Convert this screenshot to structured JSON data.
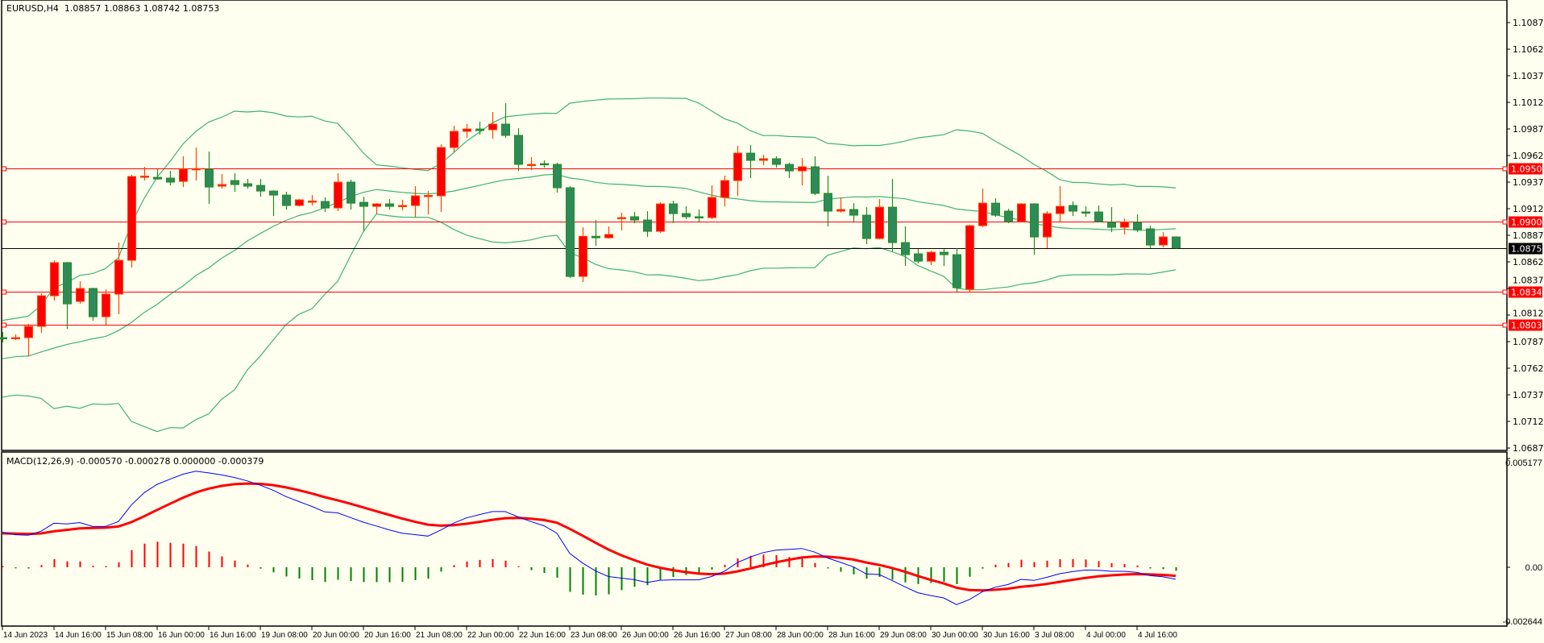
{
  "main_header": {
    "symbol": "EURUSD,H4",
    "ohlc": "1.08857 1.08863 1.08742 1.08753"
  },
  "macd_header": {
    "label": "MACD(12,26,9) -0.000570 -0.000278 0.000000 -0.000379"
  },
  "colors": {
    "background": "#fffff0",
    "bull_body": "#ff0000",
    "bull_edge": "#ff4500",
    "bear_body": "#2e8b57",
    "bear_edge": "#228b22",
    "bands": "#3cb371",
    "level": "#ff0000",
    "macd_main": "#0000ff",
    "macd_signal": "#ff0000",
    "hist_pos": "#ff0000",
    "hist_neg": "#008000"
  },
  "chart_data": [
    {
      "type": "candlestick",
      "title": "EURUSD,H4",
      "indicator": "Bollinger Bands (20, 2)",
      "price_axis": {
        "range": [
          1.0687,
          1.11
        ],
        "ticks": [
          "1.10875",
          "1.10625",
          "1.10370",
          "1.10120",
          "1.09870",
          "1.09620",
          "1.09370",
          "1.09120",
          "1.08870",
          "1.08620",
          "1.08370",
          "1.08120",
          "1.07870",
          "1.07620",
          "1.07370",
          "1.07120",
          "1.06870"
        ]
      },
      "levels": [
        {
          "label": "1.09500",
          "value": 1.095
        },
        {
          "label": "1.09001",
          "value": 1.09001
        },
        {
          "label": "1.08341",
          "value": 1.08341
        },
        {
          "label": "1.08031",
          "value": 1.08031
        }
      ],
      "current_price": {
        "label": "1.08753",
        "value": 1.08753
      },
      "time_labels": [
        "14 Jun 2023",
        "14 Jun 16:00",
        "15 Jun 08:00",
        "16 Jun 00:00",
        "16 Jun 16:00",
        "19 Jun 08:00",
        "20 Jun 00:00",
        "20 Jun 16:00",
        "21 Jun 08:00",
        "22 Jun 00:00",
        "22 Jun 16:00",
        "23 Jun 08:00",
        "26 Jun 00:00",
        "26 Jun 16:00",
        "27 Jun 08:00",
        "28 Jun 00:00",
        "28 Jun 16:00",
        "29 Jun 08:00",
        "30 Jun 00:00",
        "30 Jun 16:00",
        "3 Jul 08:00",
        "4 Jul 00:00",
        "4 Jul 16:00"
      ],
      "bars_per_time_label": 4,
      "ohlc": [
        [
          1.07909,
          1.07962,
          1.07864,
          1.07901
        ],
        [
          1.07901,
          1.07939,
          1.07886,
          1.07909
        ],
        [
          1.07909,
          1.08038,
          1.07734,
          1.08015
        ],
        [
          1.08015,
          1.08326,
          1.07954,
          1.08303
        ],
        [
          1.08303,
          1.08637,
          1.08258,
          1.08615
        ],
        [
          1.08615,
          1.08622,
          1.07992,
          1.08227
        ],
        [
          1.0825,
          1.0844,
          1.08227,
          1.08372
        ],
        [
          1.08372,
          1.08379,
          1.08068,
          1.08106
        ],
        [
          1.08106,
          1.08364,
          1.0803,
          1.08319
        ],
        [
          1.08319,
          1.08804,
          1.08129,
          1.08637
        ],
        [
          1.08637,
          1.09441,
          1.08569,
          1.09426
        ],
        [
          1.09426,
          1.09517,
          1.09388,
          1.0943
        ],
        [
          1.09418,
          1.09494,
          1.09396,
          1.09403
        ],
        [
          1.09411,
          1.09479,
          1.09342,
          1.09373
        ],
        [
          1.0938,
          1.09616,
          1.09327,
          1.09494
        ],
        [
          1.09494,
          1.09699,
          1.09388,
          1.095
        ],
        [
          1.09494,
          1.09661,
          1.09168,
          1.09327
        ],
        [
          1.09335,
          1.09449,
          1.09312,
          1.0935
        ],
        [
          1.09388,
          1.09456,
          1.09282,
          1.0935
        ],
        [
          1.09358,
          1.09403,
          1.09312,
          1.09335
        ],
        [
          1.09342,
          1.09403,
          1.09236,
          1.09289
        ],
        [
          1.09289,
          1.09295,
          1.09054,
          1.09251
        ],
        [
          1.09251,
          1.09282,
          1.09115,
          1.09153
        ],
        [
          1.09153,
          1.09213,
          1.09145,
          1.09206
        ],
        [
          1.09191,
          1.09251,
          1.09153,
          1.09195
        ],
        [
          1.09191,
          1.09229,
          1.09092,
          1.0913
        ],
        [
          1.0913,
          1.09456,
          1.091,
          1.09373
        ],
        [
          1.09373,
          1.09396,
          1.09115,
          1.09175
        ],
        [
          1.09183,
          1.09236,
          1.0891,
          1.09145
        ],
        [
          1.09145,
          1.09175,
          1.09077,
          1.09168
        ],
        [
          1.09168,
          1.09213,
          1.09115,
          1.09145
        ],
        [
          1.09149,
          1.09206,
          1.09107,
          1.09153
        ],
        [
          1.09153,
          1.09335,
          1.09047,
          1.09244
        ],
        [
          1.09244,
          1.09289,
          1.09069,
          1.09248
        ],
        [
          1.09244,
          1.09729,
          1.09092,
          1.09699
        ],
        [
          1.09699,
          1.09904,
          1.09653,
          1.09851
        ],
        [
          1.09851,
          1.09919,
          1.0979,
          1.09873
        ],
        [
          1.09873,
          1.09942,
          1.0982,
          1.09858
        ],
        [
          1.09866,
          1.10033,
          1.09782,
          1.09919
        ],
        [
          1.09919,
          1.10116,
          1.0979,
          1.09813
        ],
        [
          1.09813,
          1.09881,
          1.09479,
          1.0954
        ],
        [
          1.09536,
          1.09608,
          1.09487,
          1.0954
        ],
        [
          1.09547,
          1.09578,
          1.09509,
          1.0954
        ],
        [
          1.0954,
          1.09555,
          1.09274,
          1.0932
        ],
        [
          1.0932,
          1.09335,
          1.0847,
          1.08485
        ],
        [
          1.08485,
          1.08948,
          1.08432,
          1.08863
        ],
        [
          1.08863,
          1.09016,
          1.08773,
          1.08849
        ],
        [
          1.08849,
          1.08956,
          1.08842,
          1.0888
        ],
        [
          1.09035,
          1.09085,
          1.08918,
          1.09039
        ],
        [
          1.09047,
          1.09092,
          1.08986,
          1.09016
        ],
        [
          1.09016,
          1.091,
          1.08857,
          1.0891
        ],
        [
          1.0891,
          1.09183,
          1.08895,
          1.09168
        ],
        [
          1.09168,
          1.09198,
          1.08986,
          1.09077
        ],
        [
          1.09077,
          1.09145,
          1.09024,
          1.09047
        ],
        [
          1.09047,
          1.09115,
          1.09001,
          1.09039
        ],
        [
          1.09039,
          1.09342,
          1.09024,
          1.09229
        ],
        [
          1.09229,
          1.09434,
          1.09145,
          1.09388
        ],
        [
          1.09388,
          1.09714,
          1.09244,
          1.09646
        ],
        [
          1.09646,
          1.09722,
          1.09411,
          1.09578
        ],
        [
          1.09578,
          1.09631,
          1.09532,
          1.09593
        ],
        [
          1.09593,
          1.09616,
          1.09509,
          1.0954
        ],
        [
          1.0954,
          1.09555,
          1.09411,
          1.09479
        ],
        [
          1.09479,
          1.096,
          1.09342,
          1.09517
        ],
        [
          1.09517,
          1.09616,
          1.09251,
          1.09267
        ],
        [
          1.09267,
          1.09434,
          1.08956,
          1.091
        ],
        [
          1.091,
          1.09229,
          1.09085,
          1.09115
        ],
        [
          1.09115,
          1.09175,
          1.09001,
          1.09062
        ],
        [
          1.09062,
          1.09137,
          1.08789,
          1.08842
        ],
        [
          1.08842,
          1.09213,
          1.08834,
          1.09137
        ],
        [
          1.09137,
          1.09403,
          1.08721,
          1.08804
        ],
        [
          1.08804,
          1.08956,
          1.08584,
          1.0869
        ],
        [
          1.08698,
          1.08743,
          1.08607,
          1.08629
        ],
        [
          1.08629,
          1.08728,
          1.08592,
          1.08713
        ],
        [
          1.08713,
          1.08743,
          1.08584,
          1.0869
        ],
        [
          1.0869,
          1.08751,
          1.08341,
          1.08379
        ],
        [
          1.08364,
          1.08971,
          1.08341,
          1.08963
        ],
        [
          1.08963,
          1.09312,
          1.08948,
          1.09175
        ],
        [
          1.09175,
          1.09221,
          1.09047,
          1.09062
        ],
        [
          1.091,
          1.09122,
          1.08986,
          1.09001
        ],
        [
          1.09001,
          1.09175,
          1.09001,
          1.09168
        ],
        [
          1.09168,
          1.09175,
          1.0869,
          1.08857
        ],
        [
          1.08857,
          1.091,
          1.08751,
          1.09077
        ],
        [
          1.09077,
          1.09335,
          1.09001,
          1.09145
        ],
        [
          1.09153,
          1.09191,
          1.09054,
          1.091
        ],
        [
          1.09092,
          1.09145,
          1.09047,
          1.09087
        ],
        [
          1.09092,
          1.09153,
          1.09001,
          1.09001
        ],
        [
          1.08994,
          1.09137,
          1.08902,
          1.08948
        ],
        [
          1.08948,
          1.09032,
          1.0888,
          1.08994
        ],
        [
          1.08994,
          1.09069,
          1.08902,
          1.08925
        ],
        [
          1.08933,
          1.08963,
          1.08751,
          1.08781
        ],
        [
          1.08781,
          1.08902,
          1.08758,
          1.08857
        ],
        [
          1.08857,
          1.08863,
          1.08742,
          1.08753
        ]
      ]
    },
    {
      "type": "line",
      "title": "MACD(12,26,9)",
      "y_axis": {
        "range": [
          -0.002644,
          0.005177
        ],
        "ticks": [
          "0.005177",
          "0.00",
          "-0.002644"
        ]
      },
      "series": [
        {
          "name": "MACD main",
          "color": "#0000ff"
        },
        {
          "name": "Signal",
          "color": "#ff0000"
        },
        {
          "name": "Histogram (main - signal)"
        }
      ]
    }
  ]
}
